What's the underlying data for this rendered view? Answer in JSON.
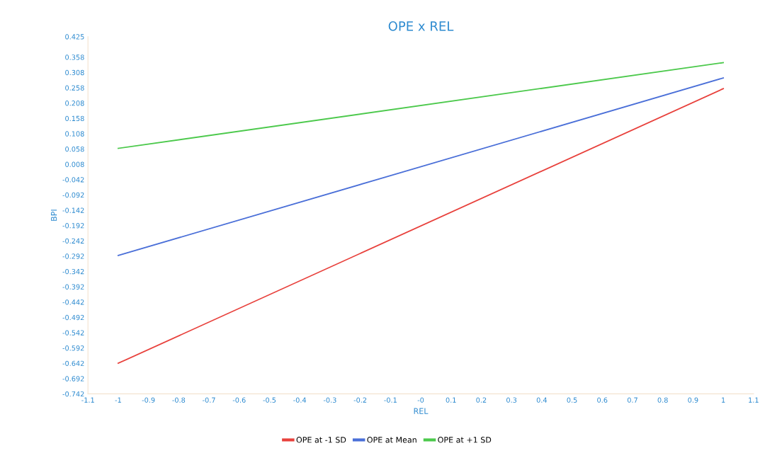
{
  "chart_data": {
    "type": "line",
    "title": "OPE x REL",
    "xlabel": "REL",
    "ylabel": "BPI",
    "x": [
      -1,
      1
    ],
    "series": [
      {
        "name": "OPE at -1 SD",
        "color": "#e8413c",
        "values": [
          -0.642,
          0.255
        ]
      },
      {
        "name": "OPE at Mean",
        "color": "#4a6fd8",
        "values": [
          -0.29,
          0.29
        ]
      },
      {
        "name": "OPE at +1 SD",
        "color": "#4cc94c",
        "values": [
          0.06,
          0.34
        ]
      }
    ],
    "xlim": [
      -1.1,
      1.1
    ],
    "xticks": [
      -1.1,
      -1,
      -0.9,
      -0.8,
      -0.7,
      -0.6,
      -0.5,
      -0.4,
      -0.3,
      -0.2,
      -0.1,
      {
        "value": 0,
        "label": "-0"
      },
      0.1,
      0.2,
      0.3,
      0.4,
      0.5,
      0.6,
      0.7,
      0.8,
      0.9,
      1,
      1.1
    ],
    "ylim": [
      -0.742,
      0.425
    ],
    "yticks": [
      0.425,
      0.358,
      0.308,
      0.258,
      0.208,
      0.158,
      0.108,
      0.058,
      0.008,
      -0.042,
      -0.092,
      -0.142,
      -0.192,
      -0.242,
      -0.292,
      -0.342,
      -0.392,
      -0.442,
      -0.492,
      -0.542,
      -0.592,
      -0.642,
      -0.692,
      -0.742
    ],
    "legend": "bottom",
    "marker": "none",
    "line_style": "solid",
    "grid": false
  }
}
